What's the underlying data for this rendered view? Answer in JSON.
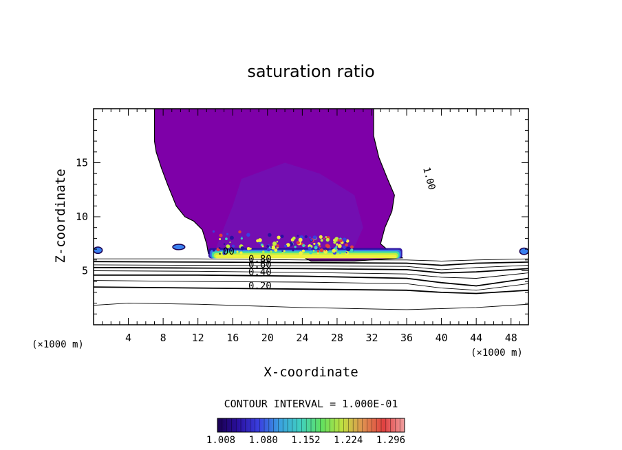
{
  "chart_data": {
    "type": "heatmap",
    "title": "saturation ratio",
    "xlabel": "X-coordinate",
    "ylabel": "Z-coordinate",
    "x_unit_left": "(×1000 m)",
    "x_unit_right": "(×1000 m)",
    "xlim": [
      0,
      50
    ],
    "ylim": [
      0,
      20
    ],
    "xticks": [
      4,
      8,
      12,
      16,
      20,
      24,
      28,
      32,
      36,
      40,
      44,
      48
    ],
    "yticks": [
      5,
      10,
      15
    ],
    "contour_interval_label": "CONTOUR INTERVAL = 1.000E-01",
    "colorbar": {
      "tick_labels": [
        "1.008",
        "1.080",
        "1.152",
        "1.224",
        "1.296"
      ],
      "colors": [
        "#1a0050",
        "#2a10a0",
        "#3a40e0",
        "#3aa0e0",
        "#40d0c0",
        "#60e060",
        "#c0e040",
        "#e09050",
        "#e04040",
        "#f0a0a0"
      ]
    },
    "colors": {
      "supersaturated_region": "#7e00a8",
      "inner_region": "#6a1ab8",
      "saturation_band": [
        "#2a10a0",
        "#3a80f0",
        "#40e0a0",
        "#c0f040",
        "#f0f040"
      ]
    },
    "contour_labels": [
      {
        "text": "1.00",
        "x": 37.9,
        "z": 14.5,
        "rotate": 75
      },
      {
        "text": ".00",
        "x": 14.2,
        "z": 6.5,
        "rotate": 0
      },
      {
        "text": "0.80",
        "x": 17.8,
        "z": 5.8,
        "rotate": 0
      },
      {
        "text": "0.60",
        "x": 17.8,
        "z": 5.3,
        "rotate": 0
      },
      {
        "text": "0.40",
        "x": 17.8,
        "z": 4.6,
        "rotate": 0
      },
      {
        "text": "0.20",
        "x": 17.8,
        "z": 3.3,
        "rotate": 0
      }
    ],
    "region_outline": [
      [
        7.0,
        20.0
      ],
      [
        7.0,
        17.0
      ],
      [
        7.2,
        16.0
      ],
      [
        7.8,
        14.5
      ],
      [
        8.5,
        13.0
      ],
      [
        9.0,
        12.0
      ],
      [
        9.5,
        11.0
      ],
      [
        10.5,
        10.0
      ],
      [
        11.5,
        9.6
      ],
      [
        12.5,
        8.8
      ],
      [
        13.0,
        7.5
      ],
      [
        13.2,
        6.6
      ],
      [
        16.0,
        6.7
      ],
      [
        20.0,
        6.5
      ],
      [
        24.0,
        6.3
      ],
      [
        25.0,
        5.9
      ],
      [
        30.0,
        5.9
      ],
      [
        35.5,
        6.2
      ],
      [
        35.0,
        6.5
      ],
      [
        34.0,
        6.8
      ],
      [
        33.0,
        7.5
      ],
      [
        33.5,
        9.0
      ],
      [
        34.3,
        10.5
      ],
      [
        34.6,
        12.0
      ],
      [
        33.8,
        13.5
      ],
      [
        32.8,
        15.5
      ],
      [
        32.2,
        17.5
      ],
      [
        32.2,
        20.0
      ]
    ],
    "small_patches": [
      {
        "x": 0.5,
        "z": 6.9,
        "w": 1.0,
        "h": 0.6
      },
      {
        "x": 9.8,
        "z": 7.2,
        "w": 1.4,
        "h": 0.5
      },
      {
        "x": 49.5,
        "z": 6.8,
        "w": 1.0,
        "h": 0.6
      }
    ],
    "contour_lines": [
      {
        "level": 0.9,
        "pts": [
          [
            0,
            6.1
          ],
          [
            12,
            6.1
          ],
          [
            24,
            6.0
          ],
          [
            36,
            6.0
          ],
          [
            40,
            5.9
          ],
          [
            44,
            6.0
          ],
          [
            50,
            6.1
          ]
        ]
      },
      {
        "level": 0.8,
        "pts": [
          [
            0,
            5.85
          ],
          [
            12,
            5.8
          ],
          [
            24,
            5.75
          ],
          [
            36,
            5.7
          ],
          [
            40,
            5.5
          ],
          [
            44,
            5.7
          ],
          [
            50,
            5.8
          ]
        ]
      },
      {
        "level": 0.7,
        "pts": [
          [
            0,
            5.55
          ],
          [
            12,
            5.5
          ],
          [
            24,
            5.45
          ],
          [
            36,
            5.4
          ],
          [
            40,
            5.1
          ],
          [
            44,
            5.3
          ],
          [
            50,
            5.5
          ]
        ]
      },
      {
        "level": 0.6,
        "pts": [
          [
            0,
            5.3
          ],
          [
            12,
            5.25
          ],
          [
            24,
            5.2
          ],
          [
            36,
            5.1
          ],
          [
            40,
            4.8
          ],
          [
            44,
            4.9
          ],
          [
            50,
            5.2
          ]
        ]
      },
      {
        "level": 0.5,
        "pts": [
          [
            0,
            5.0
          ],
          [
            12,
            4.95
          ],
          [
            24,
            4.85
          ],
          [
            36,
            4.7
          ],
          [
            40,
            4.4
          ],
          [
            44,
            4.3
          ],
          [
            50,
            4.8
          ]
        ]
      },
      {
        "level": 0.4,
        "pts": [
          [
            0,
            4.6
          ],
          [
            12,
            4.6
          ],
          [
            24,
            4.5
          ],
          [
            36,
            4.3
          ],
          [
            40,
            3.9
          ],
          [
            44,
            3.6
          ],
          [
            50,
            4.3
          ]
        ]
      },
      {
        "level": 0.3,
        "pts": [
          [
            0,
            4.1
          ],
          [
            12,
            4.0
          ],
          [
            24,
            3.95
          ],
          [
            36,
            3.8
          ],
          [
            40,
            3.4
          ],
          [
            44,
            3.2
          ],
          [
            50,
            3.8
          ]
        ]
      },
      {
        "level": 0.2,
        "pts": [
          [
            0,
            3.5
          ],
          [
            12,
            3.4
          ],
          [
            24,
            3.3
          ],
          [
            36,
            3.2
          ],
          [
            40,
            3.0
          ],
          [
            44,
            2.9
          ],
          [
            50,
            3.2
          ]
        ]
      },
      {
        "level": 0.1,
        "pts": [
          [
            0,
            1.8
          ],
          [
            4,
            2.0
          ],
          [
            12,
            1.9
          ],
          [
            24,
            1.6
          ],
          [
            36,
            1.4
          ],
          [
            44,
            1.6
          ],
          [
            50,
            1.9
          ]
        ]
      }
    ]
  }
}
